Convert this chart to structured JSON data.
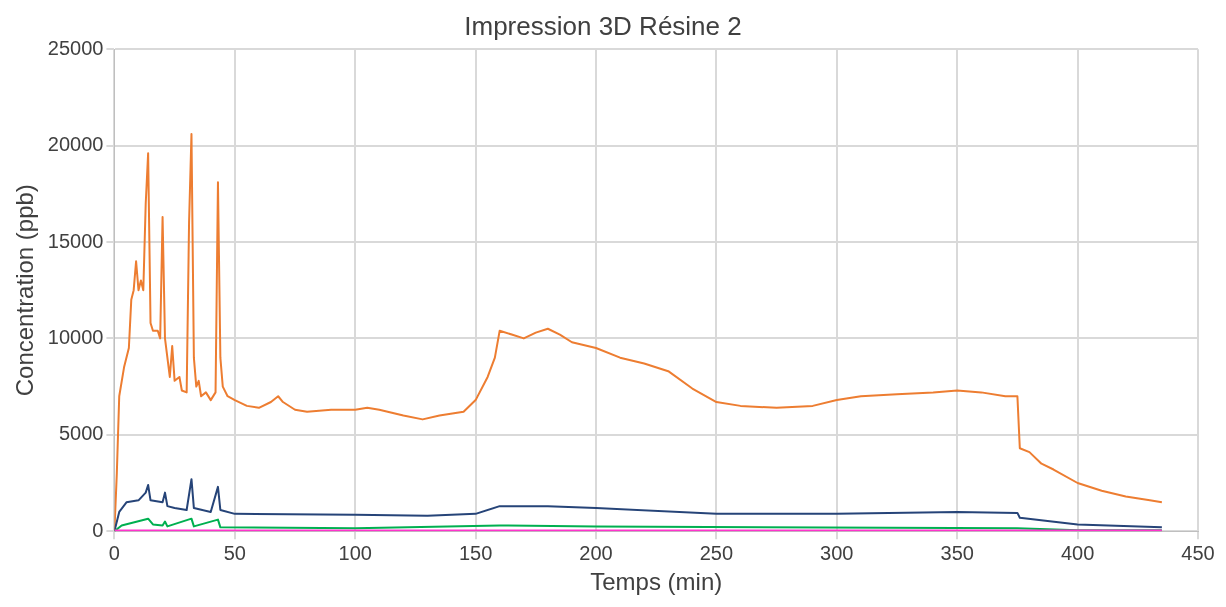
{
  "chart_data": {
    "type": "line",
    "title": "Impression 3D Résine 2",
    "xlabel": "Temps (min)",
    "ylabel": "Concentration (ppb)",
    "xlim": [
      0,
      450
    ],
    "xticks": [
      0,
      50,
      100,
      150,
      200,
      250,
      300,
      350,
      400,
      450
    ],
    "ylim": [
      0,
      25000
    ],
    "yticks": [
      0,
      5000,
      10000,
      15000,
      20000,
      25000
    ],
    "grid": true,
    "legend": false,
    "marker": "none",
    "line_style": "solid",
    "series": [
      {
        "color": "#ed7d31",
        "x": [
          0,
          1,
          2,
          4,
          6,
          7,
          8,
          9,
          10,
          11,
          12,
          13,
          14,
          15,
          16,
          18,
          19,
          20,
          21,
          22,
          23,
          24,
          25,
          27,
          28,
          30,
          31,
          32,
          33,
          34,
          35,
          36,
          38,
          40,
          42,
          43,
          44,
          45,
          47,
          50,
          55,
          60,
          65,
          68,
          70,
          75,
          80,
          90,
          100,
          105,
          110,
          120,
          128,
          135,
          145,
          150,
          155,
          158,
          160,
          165,
          170,
          175,
          180,
          185,
          190,
          200,
          210,
          220,
          230,
          240,
          250,
          260,
          275,
          290,
          300,
          310,
          325,
          340,
          350,
          360,
          370,
          375,
          376,
          380,
          385,
          390,
          400,
          410,
          420,
          430,
          435
        ],
        "values": [
          0,
          3000,
          7000,
          8500,
          9500,
          12000,
          12500,
          14000,
          12500,
          13000,
          12500,
          17000,
          19600,
          10800,
          10400,
          10400,
          10000,
          16300,
          10000,
          9000,
          8000,
          9600,
          7800,
          8000,
          7300,
          7200,
          16000,
          20600,
          9000,
          7500,
          7800,
          7000,
          7200,
          6800,
          7200,
          18100,
          9000,
          7500,
          7000,
          6800,
          6500,
          6400,
          6700,
          7000,
          6700,
          6300,
          6200,
          6300,
          6300,
          6400,
          6300,
          6000,
          5800,
          6000,
          6200,
          6800,
          8000,
          9000,
          10400,
          10200,
          10000,
          10300,
          10500,
          10200,
          9800,
          9500,
          9000,
          8700,
          8300,
          7400,
          6700,
          6500,
          6400,
          6500,
          6800,
          7000,
          7100,
          7200,
          7300,
          7200,
          7000,
          7000,
          4300,
          4100,
          3500,
          3200,
          2500,
          2100,
          1800,
          1600,
          1500
        ]
      },
      {
        "color": "#264478",
        "x": [
          0,
          2,
          5,
          10,
          13,
          14,
          15,
          20,
          21,
          22,
          25,
          30,
          32,
          33,
          40,
          43,
          44,
          50,
          100,
          130,
          150,
          160,
          180,
          200,
          250,
          300,
          350,
          375,
          376,
          400,
          435
        ],
        "values": [
          0,
          1000,
          1500,
          1600,
          2000,
          2400,
          1600,
          1500,
          2000,
          1300,
          1200,
          1100,
          2700,
          1200,
          1000,
          2300,
          1100,
          900,
          850,
          800,
          900,
          1300,
          1300,
          1200,
          900,
          900,
          1000,
          950,
          700,
          350,
          200
        ]
      },
      {
        "color": "#00b050",
        "x": [
          0,
          3,
          14,
          16,
          20,
          21,
          22,
          32,
          33,
          43,
          44,
          100,
          160,
          200,
          375,
          400,
          435
        ],
        "values": [
          0,
          300,
          650,
          350,
          300,
          500,
          250,
          650,
          250,
          600,
          200,
          150,
          300,
          250,
          150,
          50,
          50
        ]
      },
      {
        "color": "#ff33cc",
        "x": [
          0,
          435
        ],
        "values": [
          30,
          30
        ]
      }
    ]
  }
}
